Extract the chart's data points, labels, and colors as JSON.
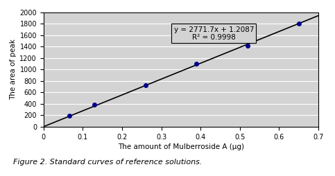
{
  "x_data": [
    0.065,
    0.13,
    0.26,
    0.39,
    0.52,
    0.65
  ],
  "y_data": [
    195,
    390,
    720,
    1100,
    1420,
    1800
  ],
  "slope": 2771.7,
  "intercept": 1.2087,
  "r_squared": 0.9998,
  "equation_text": "y = 2771.7x + 1.2087",
  "r2_text": "R² = 0.9998",
  "xlabel": "The amount of Mulberroside A (μg)",
  "ylabel": "The area of peak",
  "xlim": [
    0,
    0.7
  ],
  "ylim": [
    0,
    2000
  ],
  "xticks": [
    0,
    0.1,
    0.2,
    0.3,
    0.4,
    0.5,
    0.6,
    0.7
  ],
  "yticks": [
    0,
    200,
    400,
    600,
    800,
    1000,
    1200,
    1400,
    1600,
    1800,
    2000
  ],
  "plot_bg_color": "#d3d3d3",
  "figure_bg_color": "#ffffff",
  "line_color": "#000000",
  "dot_color": "#00008b",
  "caption": "Figure 2. Standard curves of reference solutions.",
  "annotation_box_color": "#d3d3d3",
  "annotation_edge_color": "#000000"
}
